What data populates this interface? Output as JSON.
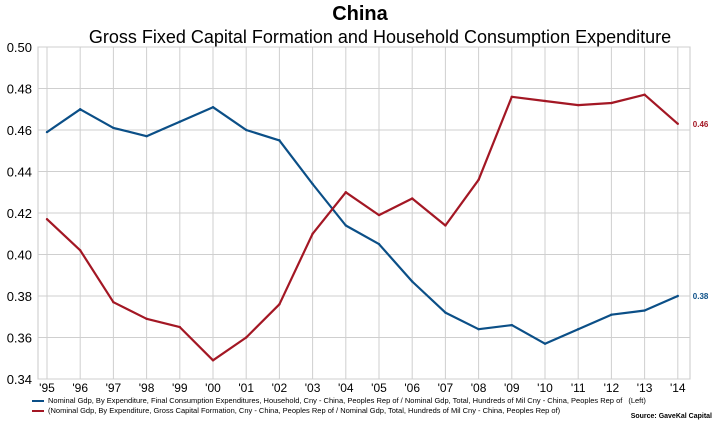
{
  "chart_data": {
    "type": "line",
    "title": "China",
    "subtitle": "Gross Fixed Capital Formation and Household Consumption Expenditure",
    "x": [
      "'95",
      "'96",
      "'97",
      "'98",
      "'99",
      "'00",
      "'01",
      "'02",
      "'03",
      "'04",
      "'05",
      "'06",
      "'07",
      "'08",
      "'09",
      "'10",
      "'11",
      "'12",
      "'13",
      "'14"
    ],
    "yticks": [
      "0.34",
      "0.36",
      "0.38",
      "0.40",
      "0.42",
      "0.44",
      "0.46",
      "0.48",
      "0.50"
    ],
    "ylim": [
      0.34,
      0.5
    ],
    "grid": true,
    "series": [
      {
        "name": "Nominal Gdp, By Expenditure, Final Consumption Expenditures, Household, Cny - China, Peoples Rep of / Nominal Gdp, Total, Hundreds of Mil Cny - China, Peoples Rep of",
        "axis_note": "(Left)",
        "color": "#0b4f87",
        "values": [
          0.459,
          0.47,
          0.461,
          0.457,
          0.464,
          0.471,
          0.46,
          0.455,
          0.434,
          0.414,
          0.405,
          0.387,
          0.372,
          0.364,
          0.366,
          0.357,
          0.364,
          0.371,
          0.373,
          0.38
        ],
        "end_label": "0.38"
      },
      {
        "name": "(Nominal Gdp, By Expenditure, Gross Capital Formation, Cny - China, Peoples Rep of / Nominal Gdp, Total, Hundreds of Mil Cny - China, Peoples Rep of)",
        "axis_note": "",
        "color": "#a31724",
        "values": [
          0.417,
          0.402,
          0.377,
          0.369,
          0.365,
          0.349,
          0.36,
          0.376,
          0.41,
          0.43,
          0.419,
          0.427,
          0.414,
          0.436,
          0.476,
          0.474,
          0.472,
          0.473,
          0.477,
          0.463
        ],
        "end_label": "0.46"
      }
    ]
  },
  "source": "Source: GaveKal Capital"
}
